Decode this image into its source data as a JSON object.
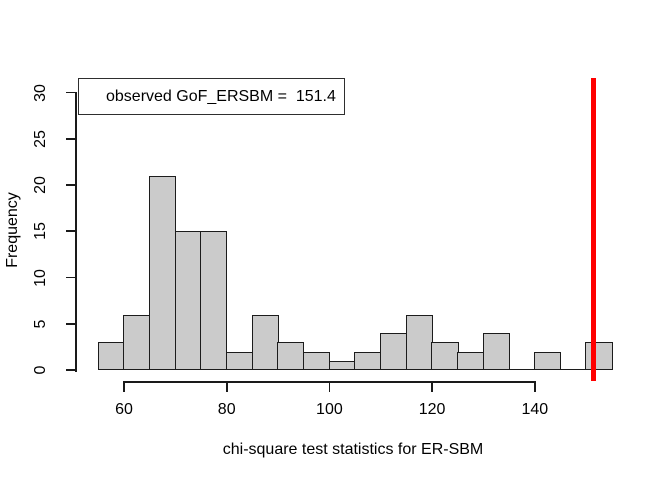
{
  "chart_data": {
    "type": "bar",
    "subtype": "histogram",
    "title": "",
    "xlabel": "chi-square test statistics for ER-SBM",
    "ylabel": "Frequency",
    "breaks": [
      55,
      60,
      65,
      70,
      75,
      80,
      85,
      90,
      95,
      100,
      105,
      110,
      115,
      120,
      125,
      130,
      135,
      140,
      145,
      150,
      155
    ],
    "counts": [
      3,
      6,
      21,
      15,
      15,
      2,
      6,
      3,
      2,
      1,
      2,
      4,
      6,
      3,
      2,
      4,
      0,
      2,
      0,
      3
    ],
    "x_ticks": [
      60,
      80,
      100,
      120,
      140
    ],
    "y_ticks": [
      0,
      5,
      10,
      15,
      20,
      25,
      30
    ],
    "xlim": [
      51,
      159
    ],
    "ylim": [
      0,
      31
    ],
    "grid": false,
    "legend_position": "topleft",
    "legend_text": "observed GoF_ERSBM =  151.4",
    "observed_value": 151.4,
    "colors": {
      "bar_fill": "#cbcbcb",
      "bar_border": "#1c1c1c",
      "axis": "#1a1a1a",
      "text": "#000000",
      "observed_line": "#ff0000",
      "background": "#ffffff"
    }
  }
}
